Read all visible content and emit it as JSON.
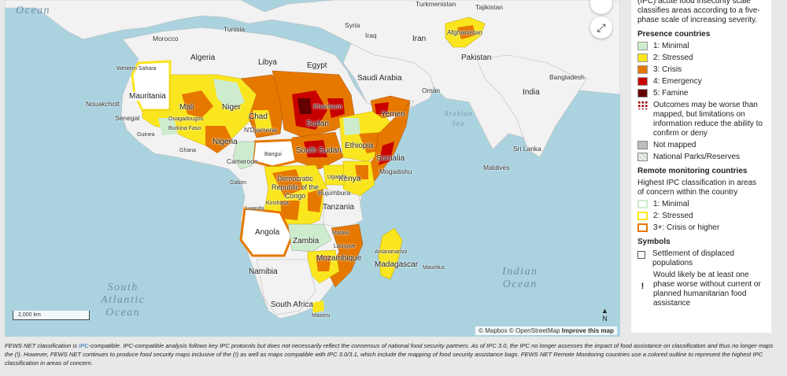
{
  "map": {
    "oceans": {
      "ocean_top": "Ocean",
      "south_atlantic": [
        "South",
        "Atlantic",
        "Ocean"
      ],
      "indian": [
        "Indian",
        "Ocean"
      ],
      "arabian_sea": [
        "Arabian",
        "Sea"
      ]
    },
    "places": {
      "tunisia": "Tunisia",
      "morocco": "Morocco",
      "algeria": "Algeria",
      "libya": "Libya",
      "egypt": "Egypt",
      "western_sahara": "Western Sahara",
      "mauritania": "Mauritania",
      "mali": "Mali",
      "niger": "Niger",
      "chad": "Chad",
      "sudan": "Sudan",
      "khartoum": "Khartoum",
      "yemen": "Yemen",
      "oman": "Oman",
      "saudi": "Saudi Arabia",
      "iraq": "Iraq",
      "syria": "Syria",
      "iran": "Iran",
      "turkmenistan": "Turkmenistan",
      "tajikistan": "Tajikistan",
      "afghanistan": "Afghanistan",
      "pakistan": "Pakistan",
      "india": "India",
      "bangladesh": "Bangladesh",
      "sri_lanka": "Sri Lanka",
      "maldives": "Maldives",
      "nouakchott": "Nouakchott",
      "senegal": "Senegal",
      "guinea": "Guinea",
      "ouagadougou": "Ouagadougou",
      "burkina_faso": "Burkina Faso",
      "ghana": "Ghana",
      "nigeria": "Nigeria",
      "ndjamena": "N'Djamena",
      "ethiopia": "Ethiopia",
      "south_sudan": "South Sudan",
      "somalia": "Somalia",
      "mogadishu": "Mogadishu",
      "cameroon": "Cameroon",
      "bangui": "Bangui",
      "gabon": "Gabon",
      "drc": "Democratic Republic of the Congo",
      "kinshasa": "Kinshasa",
      "luanda": "Luanda",
      "kenya": "Kenya",
      "uganda": "Uganda",
      "bujumbura": "Bujumbura",
      "tanzania": "Tanzania",
      "angola": "Angola",
      "zambia": "Zambia",
      "malawi": "Malawi",
      "lilongwe": "Lilongwe",
      "mozambique": "Mozambique",
      "namibia": "Namibia",
      "madagascar": "Madagascar",
      "antananarivo": "Antananarivo",
      "mauritius": "Mauritius",
      "south_africa": "South Africa",
      "maseru": "Maseru"
    },
    "scale_label": "2,000 km",
    "attribution": {
      "mapbox": "© Mapbox",
      "osm": "© OpenStreetMap",
      "improve": "Improve this map"
    },
    "north_label": "N",
    "fullscreen_icon": "expand-icon"
  },
  "legend": {
    "intro": "(IPC) acute food insecurity scale classifies areas according to a five-phase scale of increasing severity.",
    "presence_title": "Presence countries",
    "presence": [
      {
        "label": "1: Minimal",
        "color": "#cdeccd"
      },
      {
        "label": "2: Stressed",
        "color": "#fae61e"
      },
      {
        "label": "3: Crisis",
        "color": "#e67800"
      },
      {
        "label": "4: Emergency",
        "color": "#c80000"
      },
      {
        "label": "5: Famine",
        "color": "#640000"
      }
    ],
    "worse_note": "Outcomes may be worse than mapped, but limitations on information reduce the ability to confirm or deny",
    "not_mapped": "Not mapped",
    "parks": "National Parks/Reserves",
    "remote_title": "Remote monitoring countries",
    "remote_sub": "Highest IPC classification in areas of concern within the country",
    "remote": [
      {
        "label": "1: Minimal",
        "color": "#cdeccd"
      },
      {
        "label": "2: Stressed",
        "color": "#fae61e"
      },
      {
        "label": "3+: Crisis or higher",
        "color": "#e67800"
      }
    ],
    "symbols_title": "Symbols",
    "symbols": [
      {
        "label": "Settlement of displaced populations",
        "icon": "settlement-icon"
      },
      {
        "label": "Would likely be at least one phase worse without current or planned humanitarian food assistance",
        "icon": "exclamation-icon"
      }
    ]
  },
  "footnote": {
    "part1": "FEWS NET classification is ",
    "link": "IPC",
    "part2": "-compatible. IPC-compatible analysis follows key IPC protocols but does not necessarily reflect the consensus of national food security partners. As of IPC 3.0, the IPC no longer assesses the impact of food assistance on classification and thus no longer maps the (!). However, FEWS NET continues to produce food security maps inclusive of the (!) as well as maps compatible with IPC 3.0/3.1, which include the mapping of food security assistance bags. FEWS NET Remote Monitoring countries use a colored outline to represent the highest IPC classification in areas of concern."
  }
}
